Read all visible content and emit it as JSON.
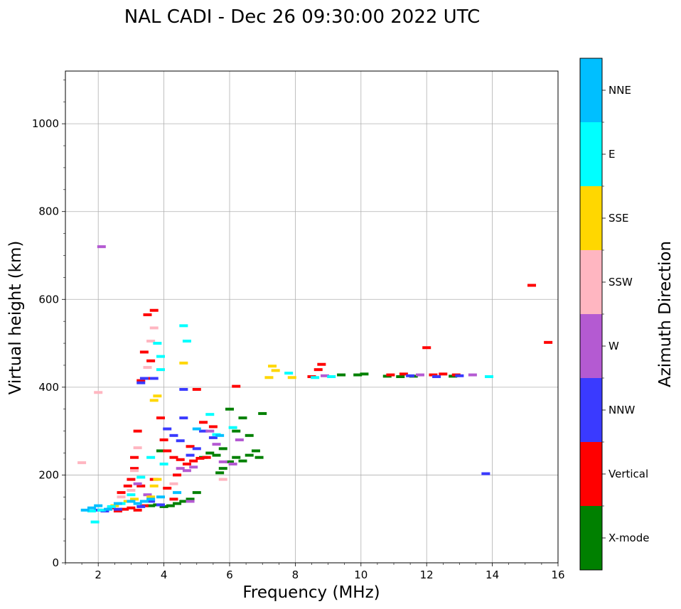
{
  "chart_data": {
    "type": "scatter",
    "title": "NAL CADI - Dec 26 09:30:00 2022 UTC",
    "xlabel": "Frequency (MHz)",
    "ylabel": "Virtual height (km)",
    "xlim": [
      1,
      16
    ],
    "ylim": [
      0,
      1120
    ],
    "xticks": [
      2,
      4,
      6,
      8,
      10,
      12,
      14,
      16
    ],
    "xtick_labels": [
      "2",
      "4",
      "6",
      "8",
      "10",
      "12",
      "14",
      "16"
    ],
    "yticks": [
      0,
      200,
      400,
      600,
      800,
      1000
    ],
    "ytick_labels": [
      "0",
      "200",
      "400",
      "600",
      "800",
      "1000"
    ],
    "grid": true,
    "colorbar": {
      "label": "Azimuth Direction",
      "categories": [
        {
          "name": "X-mode",
          "color": "#008000"
        },
        {
          "name": "Vertical",
          "color": "#ff0000"
        },
        {
          "name": "NNW",
          "color": "#3a3aff"
        },
        {
          "name": "W",
          "color": "#b45ad2"
        },
        {
          "name": "SSW",
          "color": "#ffb6c1"
        },
        {
          "name": "SSE",
          "color": "#ffd700"
        },
        {
          "name": "E",
          "color": "#00ffff"
        },
        {
          "name": "NNE",
          "color": "#00bfff"
        }
      ]
    },
    "series": [
      {
        "name": "X-mode",
        "points": [
          [
            3.6,
            130
          ],
          [
            3.8,
            132
          ],
          [
            4.0,
            128
          ],
          [
            4.2,
            130
          ],
          [
            4.4,
            135
          ],
          [
            4.6,
            140
          ],
          [
            4.8,
            145
          ],
          [
            5.0,
            160
          ],
          [
            5.2,
            240
          ],
          [
            5.4,
            250
          ],
          [
            5.6,
            245
          ],
          [
            5.7,
            205
          ],
          [
            5.8,
            215
          ],
          [
            6.0,
            230
          ],
          [
            6.2,
            240
          ],
          [
            6.4,
            232
          ],
          [
            6.6,
            245
          ],
          [
            6.8,
            255
          ],
          [
            6.9,
            240
          ],
          [
            6.4,
            330
          ],
          [
            6.0,
            350
          ],
          [
            6.2,
            300
          ],
          [
            5.8,
            260
          ],
          [
            7.0,
            340
          ],
          [
            9.4,
            428
          ],
          [
            9.9,
            428
          ],
          [
            10.1,
            430
          ],
          [
            10.8,
            425
          ],
          [
            11.2,
            424
          ],
          [
            11.6,
            425
          ],
          [
            12.8,
            425
          ],
          [
            3.9,
            255
          ],
          [
            6.6,
            290
          ]
        ]
      },
      {
        "name": "Vertical",
        "points": [
          [
            2.4,
            125
          ],
          [
            2.6,
            118
          ],
          [
            2.8,
            122
          ],
          [
            3.0,
            125
          ],
          [
            3.2,
            120
          ],
          [
            3.4,
            130
          ],
          [
            3.0,
            190
          ],
          [
            3.1,
            240
          ],
          [
            3.2,
            300
          ],
          [
            3.3,
            175
          ],
          [
            2.7,
            160
          ],
          [
            2.9,
            175
          ],
          [
            3.1,
            215
          ],
          [
            3.5,
            420
          ],
          [
            3.4,
            480
          ],
          [
            3.3,
            415
          ],
          [
            3.6,
            460
          ],
          [
            3.5,
            565
          ],
          [
            3.7,
            575
          ],
          [
            3.9,
            330
          ],
          [
            4.0,
            280
          ],
          [
            4.1,
            255
          ],
          [
            4.3,
            240
          ],
          [
            4.5,
            235
          ],
          [
            4.7,
            225
          ],
          [
            4.9,
            232
          ],
          [
            5.1,
            238
          ],
          [
            5.3,
            240
          ],
          [
            4.8,
            265
          ],
          [
            5.2,
            320
          ],
          [
            5.5,
            310
          ],
          [
            4.4,
            200
          ],
          [
            4.1,
            170
          ],
          [
            4.3,
            145
          ],
          [
            3.7,
            190
          ],
          [
            8.5,
            424
          ],
          [
            8.8,
            452
          ],
          [
            8.7,
            440
          ],
          [
            10.9,
            428
          ],
          [
            11.3,
            430
          ],
          [
            12.2,
            428
          ],
          [
            12.5,
            430
          ],
          [
            12.9,
            428
          ],
          [
            12.0,
            490
          ],
          [
            15.2,
            632
          ],
          [
            15.7,
            502
          ],
          [
            6.2,
            402
          ],
          [
            5.0,
            395
          ]
        ]
      },
      {
        "name": "NNW",
        "points": [
          [
            2.0,
            120
          ],
          [
            2.2,
            118
          ],
          [
            2.6,
            122
          ],
          [
            3.3,
            128
          ],
          [
            3.6,
            140
          ],
          [
            3.9,
            132
          ],
          [
            4.1,
            305
          ],
          [
            4.3,
            290
          ],
          [
            4.5,
            278
          ],
          [
            4.6,
            395
          ],
          [
            4.6,
            330
          ],
          [
            4.8,
            245
          ],
          [
            5.0,
            260
          ],
          [
            5.2,
            300
          ],
          [
            3.3,
            410
          ],
          [
            3.4,
            420
          ],
          [
            3.7,
            420
          ],
          [
            11.5,
            426
          ],
          [
            12.3,
            424
          ],
          [
            13.0,
            426
          ],
          [
            13.8,
            203
          ],
          [
            5.5,
            285
          ]
        ]
      },
      {
        "name": "W",
        "points": [
          [
            2.1,
            720
          ],
          [
            3.2,
            180
          ],
          [
            3.5,
            155
          ],
          [
            4.5,
            215
          ],
          [
            4.7,
            210
          ],
          [
            4.9,
            218
          ],
          [
            5.4,
            300
          ],
          [
            5.6,
            270
          ],
          [
            5.8,
            230
          ],
          [
            6.1,
            225
          ],
          [
            6.3,
            280
          ],
          [
            8.9,
            426
          ],
          [
            11.8,
            428
          ],
          [
            13.4,
            428
          ],
          [
            4.8,
            140
          ]
        ]
      },
      {
        "name": "SSW",
        "points": [
          [
            1.5,
            228
          ],
          [
            2.0,
            388
          ],
          [
            2.7,
            150
          ],
          [
            3.0,
            165
          ],
          [
            3.1,
            210
          ],
          [
            3.2,
            262
          ],
          [
            3.6,
            505
          ],
          [
            3.7,
            535
          ],
          [
            3.5,
            445
          ],
          [
            5.8,
            190
          ],
          [
            4.3,
            180
          ]
        ]
      },
      {
        "name": "SSE",
        "points": [
          [
            2.5,
            130
          ],
          [
            2.9,
            140
          ],
          [
            3.1,
            145
          ],
          [
            3.7,
            175
          ],
          [
            3.8,
            190
          ],
          [
            3.8,
            380
          ],
          [
            3.7,
            370
          ],
          [
            4.6,
            455
          ],
          [
            7.2,
            422
          ],
          [
            7.3,
            448
          ],
          [
            7.4,
            438
          ],
          [
            7.9,
            422
          ],
          [
            3.6,
            150
          ]
        ]
      },
      {
        "name": "E",
        "points": [
          [
            1.8,
            118
          ],
          [
            2.1,
            120
          ],
          [
            1.9,
            93
          ],
          [
            2.4,
            128
          ],
          [
            2.7,
            135
          ],
          [
            3.0,
            155
          ],
          [
            3.3,
            195
          ],
          [
            3.9,
            470
          ],
          [
            3.9,
            440
          ],
          [
            3.8,
            500
          ],
          [
            4.6,
            540
          ],
          [
            4.7,
            505
          ],
          [
            5.6,
            292
          ],
          [
            5.4,
            338
          ],
          [
            7.8,
            432
          ],
          [
            8.6,
            422
          ],
          [
            9.1,
            424
          ],
          [
            13.9,
            424
          ],
          [
            4.0,
            225
          ],
          [
            6.1,
            308
          ],
          [
            3.6,
            240
          ]
        ]
      },
      {
        "name": "NNE",
        "points": [
          [
            1.6,
            120
          ],
          [
            1.8,
            125
          ],
          [
            2.0,
            130
          ],
          [
            2.3,
            122
          ],
          [
            2.6,
            135
          ],
          [
            3.0,
            140
          ],
          [
            3.2,
            135
          ],
          [
            3.4,
            140
          ],
          [
            3.6,
            145
          ],
          [
            3.9,
            150
          ],
          [
            5.7,
            290
          ],
          [
            5.0,
            305
          ],
          [
            4.4,
            160
          ]
        ]
      }
    ]
  }
}
